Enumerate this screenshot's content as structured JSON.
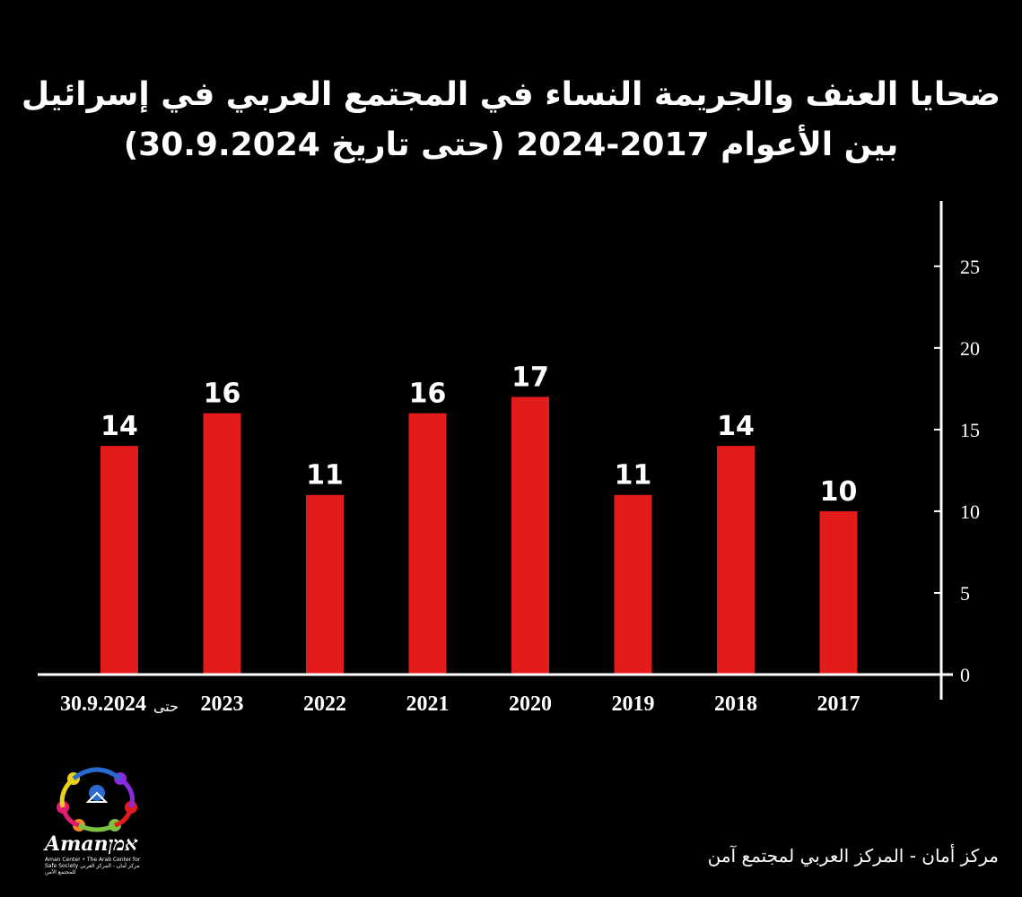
{
  "title": {
    "line1": "ضحايا العنف والجريمة النساء في المجتمع العربي في إسرائيل",
    "line2": "بين الأعوام 2017-2024 (حتى تاريخ 30.9.2024)"
  },
  "chart_data": {
    "type": "bar",
    "categories": [
      "30.9.2024",
      "2023",
      "2022",
      "2021",
      "2020",
      "2019",
      "2018",
      "2017"
    ],
    "category_prefix": {
      "index": 0,
      "text": "حتى"
    },
    "values": [
      14,
      16,
      11,
      16,
      17,
      11,
      14,
      10
    ],
    "data_labels": [
      "14",
      "16",
      "11",
      "16",
      "17",
      "11",
      "14",
      "10"
    ],
    "y_ticks": [
      0,
      5,
      10,
      15,
      20,
      25
    ],
    "ylim": [
      0,
      29
    ],
    "y_axis_side": "right",
    "bar_color": "#e31b1b",
    "grid": false
  },
  "logo": {
    "text": "Amanאמן",
    "subtitle": "Aman Center • The Arab Center for Safe Society مركز أمان - المركز العربي للمجتمع الآمن"
  },
  "footer": {
    "text": "مركز أمان  - المركز العربي لمجتمع آمن"
  },
  "colors": {
    "background": "#000000",
    "bar": "#e31b1b",
    "text": "#ffffff"
  }
}
